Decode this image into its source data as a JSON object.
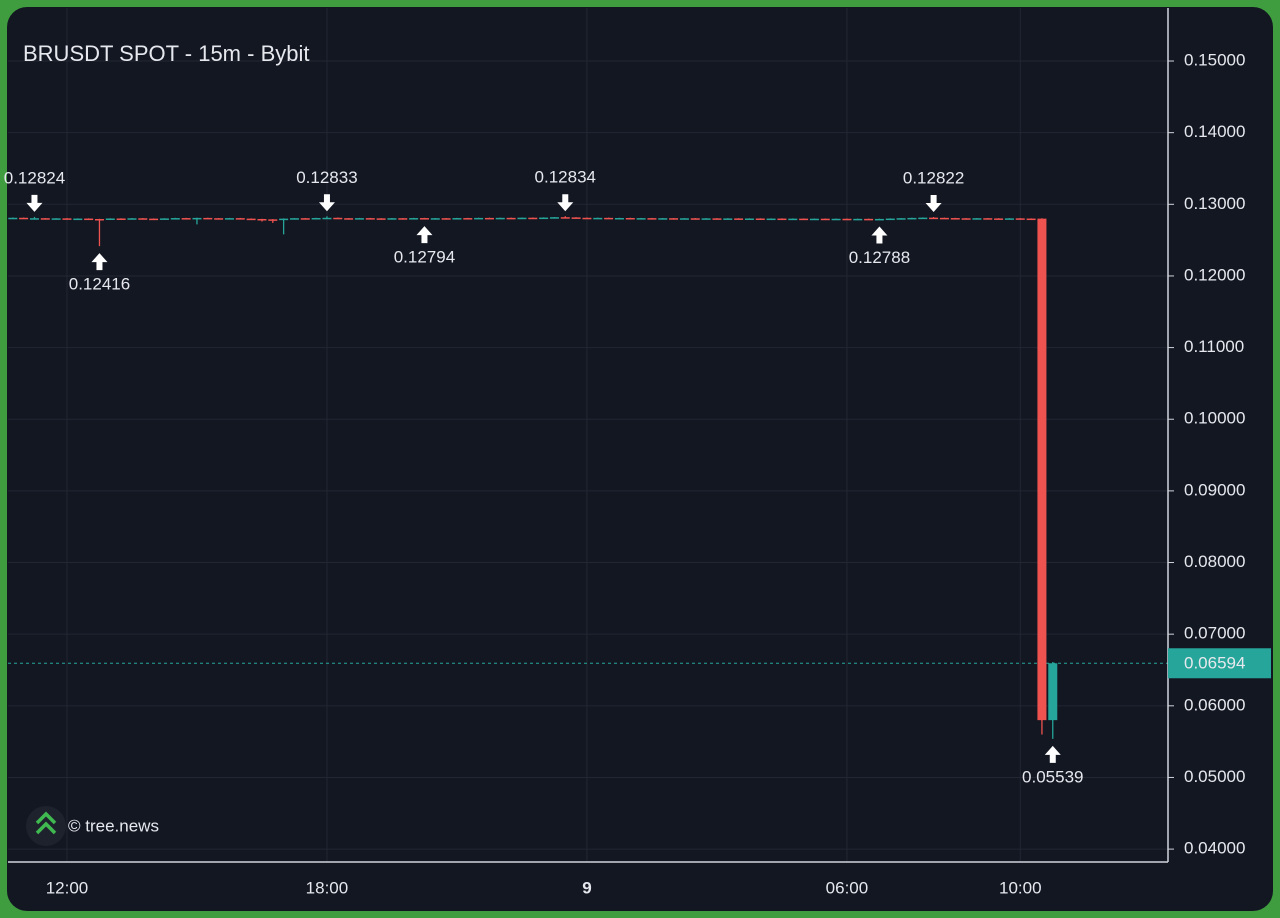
{
  "chart_data": {
    "type": "candlestick",
    "title": "BRUSDT SPOT - 15m - Bybit",
    "watermark": "© tree.news",
    "categories": [
      null,
      null,
      null,
      null,
      null,
      "12:00",
      null,
      null,
      null,
      null,
      null,
      null,
      null,
      null,
      null,
      null,
      null,
      null,
      null,
      null,
      null,
      null,
      null,
      null,
      null,
      null,
      null,
      null,
      null,
      "18:00",
      null,
      null,
      null,
      null,
      null,
      null,
      null,
      null,
      null,
      null,
      null,
      null,
      null,
      null,
      null,
      null,
      null,
      null,
      null,
      null,
      null,
      null,
      null,
      "9",
      null,
      null,
      null,
      null,
      null,
      null,
      null,
      null,
      null,
      null,
      null,
      null,
      null,
      null,
      null,
      null,
      null,
      null,
      null,
      null,
      null,
      null,
      null,
      "06:00",
      null,
      null,
      null,
      null,
      null,
      null,
      null,
      null,
      null,
      null,
      null,
      null,
      null,
      null,
      null,
      "10:00",
      null,
      null,
      null
    ],
    "bold_categories": [
      "9"
    ],
    "open": [
      0.1281,
      0.12812,
      0.12803,
      0.12806,
      0.128,
      0.12804,
      0.12798,
      0.12801,
      0.12795,
      0.1279,
      0.12802,
      0.12798,
      0.12805,
      0.128,
      0.12796,
      0.12803,
      0.12808,
      0.12804,
      0.1281,
      0.12806,
      0.12802,
      0.12807,
      0.128,
      0.12795,
      0.1279,
      0.12784,
      0.128,
      0.12806,
      0.12802,
      0.12809,
      0.12812,
      0.12806,
      0.12803,
      0.12807,
      0.12804,
      0.128,
      0.12806,
      0.12803,
      0.12808,
      0.12801,
      0.12806,
      0.12804,
      0.12808,
      0.12805,
      0.1281,
      0.12806,
      0.12811,
      0.12808,
      0.12813,
      0.12809,
      0.12815,
      0.1282,
      0.12817,
      0.12812,
      0.12808,
      0.12811,
      0.12806,
      0.12809,
      0.12804,
      0.12807,
      0.12803,
      0.12806,
      0.12801,
      0.12805,
      0.128,
      0.12804,
      0.12799,
      0.12803,
      0.12798,
      0.12802,
      0.12797,
      0.12801,
      0.12796,
      0.128,
      0.12795,
      0.12799,
      0.12794,
      0.12798,
      0.12794,
      0.12797,
      0.12793,
      0.12796,
      0.12801,
      0.12806,
      0.1281,
      0.12814,
      0.12811,
      0.12808,
      0.12805,
      0.12802,
      0.12806,
      0.12803,
      0.128,
      0.12804,
      0.12801,
      0.128,
      0.058
    ],
    "high": [
      0.12816,
      0.12815,
      0.12824,
      0.12809,
      0.12807,
      0.12807,
      0.12804,
      0.12804,
      0.12798,
      0.12805,
      0.12805,
      0.12808,
      0.12808,
      0.12803,
      0.12806,
      0.12811,
      0.12811,
      0.12813,
      0.12813,
      0.12809,
      0.1281,
      0.1281,
      0.12803,
      0.12798,
      0.12793,
      0.12803,
      0.12809,
      0.12809,
      0.12812,
      0.12833,
      0.12815,
      0.12809,
      0.1281,
      0.1281,
      0.12807,
      0.12809,
      0.12809,
      0.12811,
      0.12811,
      0.12809,
      0.12809,
      0.12811,
      0.12811,
      0.12813,
      0.12813,
      0.12814,
      0.12814,
      0.12816,
      0.12816,
      0.12818,
      0.12823,
      0.12834,
      0.1282,
      0.12815,
      0.12814,
      0.12814,
      0.12812,
      0.12812,
      0.1281,
      0.1281,
      0.12809,
      0.12809,
      0.12808,
      0.12808,
      0.12807,
      0.12807,
      0.12806,
      0.12806,
      0.12805,
      0.12805,
      0.12804,
      0.12804,
      0.12803,
      0.12803,
      0.12802,
      0.12802,
      0.12801,
      0.12801,
      0.128,
      0.128,
      0.12799,
      0.12804,
      0.12809,
      0.12813,
      0.12817,
      0.12822,
      0.12814,
      0.12811,
      0.12808,
      0.12809,
      0.12809,
      0.12806,
      0.12807,
      0.12807,
      0.12804,
      0.12805,
      0.0661
    ],
    "low": [
      0.12806,
      0.128,
      0.128,
      0.12797,
      0.12797,
      0.12795,
      0.12795,
      0.12792,
      0.12416,
      0.12787,
      0.12795,
      0.12795,
      0.12797,
      0.12793,
      0.12793,
      0.128,
      0.12801,
      0.1272,
      0.12803,
      0.12799,
      0.12799,
      0.12797,
      0.12792,
      0.1276,
      0.1274,
      0.1258,
      0.12797,
      0.12799,
      0.12799,
      0.12806,
      0.12803,
      0.128,
      0.128,
      0.12801,
      0.12797,
      0.12797,
      0.128,
      0.128,
      0.12794,
      0.12798,
      0.12801,
      0.12801,
      0.12802,
      0.12802,
      0.12803,
      0.12803,
      0.12805,
      0.12805,
      0.12806,
      0.12806,
      0.12812,
      0.12814,
      0.12809,
      0.12805,
      0.12805,
      0.12803,
      0.12803,
      0.12801,
      0.12801,
      0.128,
      0.128,
      0.12798,
      0.12798,
      0.12797,
      0.12797,
      0.12796,
      0.12796,
      0.12795,
      0.12795,
      0.12794,
      0.12794,
      0.12793,
      0.12793,
      0.12792,
      0.12792,
      0.12791,
      0.12791,
      0.12791,
      0.12791,
      0.1279,
      0.12788,
      0.12793,
      0.12798,
      0.12803,
      0.12807,
      0.12808,
      0.12805,
      0.12802,
      0.12799,
      0.12799,
      0.128,
      0.12797,
      0.12797,
      0.12798,
      0.12797,
      0.056,
      0.05539
    ],
    "close": [
      0.12812,
      0.12803,
      0.12806,
      0.128,
      0.12804,
      0.12798,
      0.12801,
      0.12795,
      0.1279,
      0.12802,
      0.12798,
      0.12805,
      0.128,
      0.12796,
      0.12803,
      0.12808,
      0.12804,
      0.1281,
      0.12806,
      0.12802,
      0.12807,
      0.128,
      0.12795,
      0.1279,
      0.12784,
      0.128,
      0.12806,
      0.12802,
      0.12809,
      0.12812,
      0.12806,
      0.12803,
      0.12807,
      0.12804,
      0.128,
      0.12806,
      0.12803,
      0.12808,
      0.12801,
      0.12806,
      0.12804,
      0.12808,
      0.12805,
      0.1281,
      0.12806,
      0.12811,
      0.12808,
      0.12813,
      0.12809,
      0.12815,
      0.1282,
      0.12817,
      0.12812,
      0.12808,
      0.12811,
      0.12806,
      0.12809,
      0.12804,
      0.12807,
      0.12803,
      0.12806,
      0.12801,
      0.12805,
      0.128,
      0.12804,
      0.12799,
      0.12803,
      0.12798,
      0.12802,
      0.12797,
      0.12801,
      0.12796,
      0.128,
      0.12795,
      0.12799,
      0.12794,
      0.12798,
      0.12794,
      0.12797,
      0.12793,
      0.12796,
      0.12801,
      0.12806,
      0.1281,
      0.12814,
      0.12811,
      0.12808,
      0.12805,
      0.12802,
      0.12806,
      0.12803,
      0.128,
      0.12804,
      0.12801,
      0.128,
      0.058,
      0.06594
    ],
    "high_marks": [
      2,
      29,
      51,
      85
    ],
    "low_marks": [
      8,
      38,
      80,
      96
    ],
    "up_color": "#26a69a",
    "down_color": "#ef5350",
    "ylim": [
      0.0382,
      0.1574
    ],
    "yticks": [
      {
        "value": 0.04,
        "label": "0.04000"
      },
      {
        "value": 0.05,
        "label": "0.05000"
      },
      {
        "value": 0.06,
        "label": "0.06000"
      },
      {
        "value": 0.07,
        "label": "0.07000"
      },
      {
        "value": 0.08,
        "label": "0.08000"
      },
      {
        "value": 0.09,
        "label": "0.09000"
      },
      {
        "value": 0.1,
        "label": "0.10000"
      },
      {
        "value": 0.11,
        "label": "0.11000"
      },
      {
        "value": 0.12,
        "label": "0.12000"
      },
      {
        "value": 0.13,
        "label": "0.13000"
      },
      {
        "value": 0.14,
        "label": "0.14000"
      },
      {
        "value": 0.15,
        "label": "0.15000"
      }
    ],
    "grid": true,
    "last_price_line": true
  }
}
